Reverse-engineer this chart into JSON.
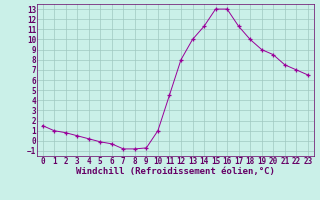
{
  "x": [
    0,
    1,
    2,
    3,
    4,
    5,
    6,
    7,
    8,
    9,
    10,
    11,
    12,
    13,
    14,
    15,
    16,
    17,
    18,
    19,
    20,
    21,
    22,
    23
  ],
  "y": [
    1.5,
    1.0,
    0.8,
    0.5,
    0.2,
    -0.1,
    -0.3,
    -0.8,
    -0.8,
    -0.7,
    1.0,
    4.5,
    8.0,
    10.0,
    11.3,
    13.0,
    13.0,
    11.3,
    10.0,
    9.0,
    8.5,
    7.5,
    7.0,
    6.5
  ],
  "line_color": "#990099",
  "marker": "+",
  "marker_color": "#990099",
  "bg_color": "#caf0e8",
  "grid_color": "#a0c8c0",
  "xlabel": "Windchill (Refroidissement éolien,°C)",
  "ylabel": "",
  "xlim": [
    -0.5,
    23.5
  ],
  "ylim": [
    -1.5,
    13.5
  ],
  "yticks": [
    -1,
    0,
    1,
    2,
    3,
    4,
    5,
    6,
    7,
    8,
    9,
    10,
    11,
    12,
    13
  ],
  "xticks": [
    0,
    1,
    2,
    3,
    4,
    5,
    6,
    7,
    8,
    9,
    10,
    11,
    12,
    13,
    14,
    15,
    16,
    17,
    18,
    19,
    20,
    21,
    22,
    23
  ],
  "axis_color": "#660066",
  "tick_color": "#660066",
  "xlabel_color": "#660066",
  "tick_fontsize": 5.5,
  "xlabel_fontsize": 6.5
}
